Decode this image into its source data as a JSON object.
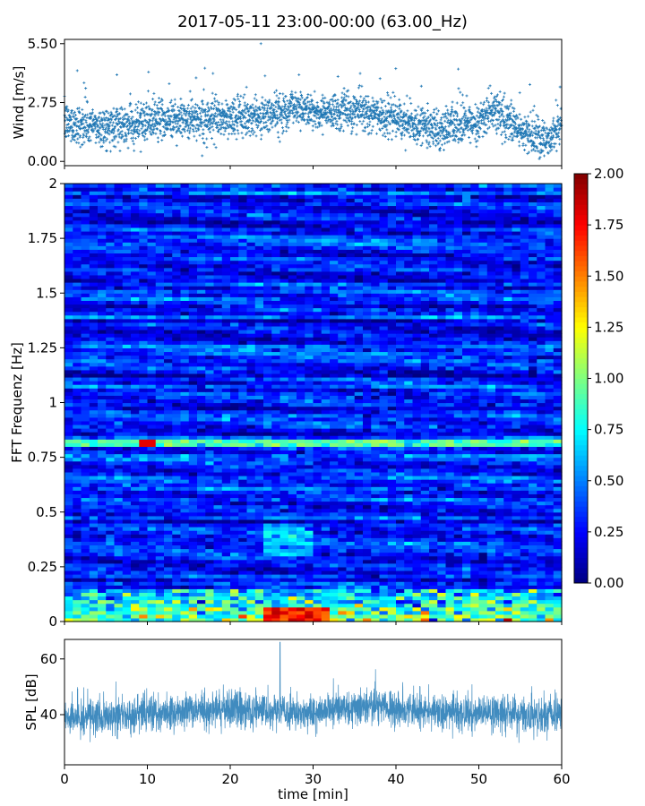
{
  "figure": {
    "title": "2017-05-11 23:00-00:00 (63.00_Hz)"
  },
  "chart_data": [
    {
      "type": "scatter",
      "ylabel": "Wind [m/s]",
      "xlim": [
        0,
        60
      ],
      "ylim": [
        -0.2,
        5.7
      ],
      "yticks": [
        0.0,
        2.75,
        5.5
      ],
      "yticklabels": [
        "0.00",
        "2.75",
        "5.50"
      ],
      "marker_color": "#1f77b4",
      "trend_minutes": [
        0,
        5,
        10,
        15,
        20,
        25,
        28,
        30,
        35,
        40,
        45,
        50,
        52,
        55,
        58,
        60
      ],
      "trend_wind": [
        1.8,
        1.6,
        1.9,
        2.0,
        2.0,
        2.2,
        2.6,
        2.3,
        2.4,
        2.0,
        1.5,
        1.9,
        2.4,
        1.4,
        1.0,
        1.6
      ],
      "samples_per_minute": 50
    },
    {
      "type": "heatmap",
      "ylabel": "FFT Frequenz [Hz]",
      "xlim": [
        0,
        60
      ],
      "ylim": [
        0,
        2
      ],
      "yticks": [
        0,
        0.25,
        0.5,
        0.75,
        1,
        1.25,
        1.5,
        1.75,
        2
      ],
      "yticklabels": [
        "0",
        "0.25",
        "0.5",
        "0.75",
        "1",
        "1.25",
        "1.5",
        "1.75",
        "2"
      ],
      "colormap": "jet",
      "colorbar": {
        "range": [
          0,
          2
        ],
        "ticks": [
          0,
          0.25,
          0.5,
          0.75,
          1,
          1.25,
          1.5,
          1.75,
          2
        ],
        "ticklabels": [
          "0.00",
          "0.25",
          "0.50",
          "0.75",
          "1.00",
          "1.25",
          "1.50",
          "1.75",
          "2.00"
        ]
      },
      "time_bins": 60,
      "freq_bins": 120,
      "background_level": 0.3,
      "low_freq_band": {
        "freq_max": 0.15,
        "level": 1.0,
        "peak_minutes": [
          24,
          32
        ],
        "peak_level": 1.9
      },
      "line_feature": {
        "freq": 0.82,
        "level": 0.9,
        "peak_minutes": [
          9,
          11
        ],
        "peak_level": 1.8
      }
    },
    {
      "type": "line",
      "xlabel": "time [min]",
      "ylabel": "SPL [dB]",
      "xlim": [
        0,
        60
      ],
      "ylim": [
        22,
        67
      ],
      "xticks": [
        0,
        10,
        20,
        30,
        40,
        50,
        60
      ],
      "xticklabels": [
        "0",
        "10",
        "20",
        "30",
        "40",
        "50",
        "60"
      ],
      "yticks": [
        40,
        60
      ],
      "yticklabels": [
        "40",
        "60"
      ],
      "line_color": "#1f77b4",
      "mean_level": 40,
      "trend_minutes": [
        0,
        10,
        20,
        26,
        30,
        37,
        45,
        55,
        60
      ],
      "trend_spl": [
        39,
        40,
        42,
        41,
        41,
        43,
        41,
        40,
        40
      ],
      "peak_minute": 26,
      "peak_spl": 66
    }
  ]
}
